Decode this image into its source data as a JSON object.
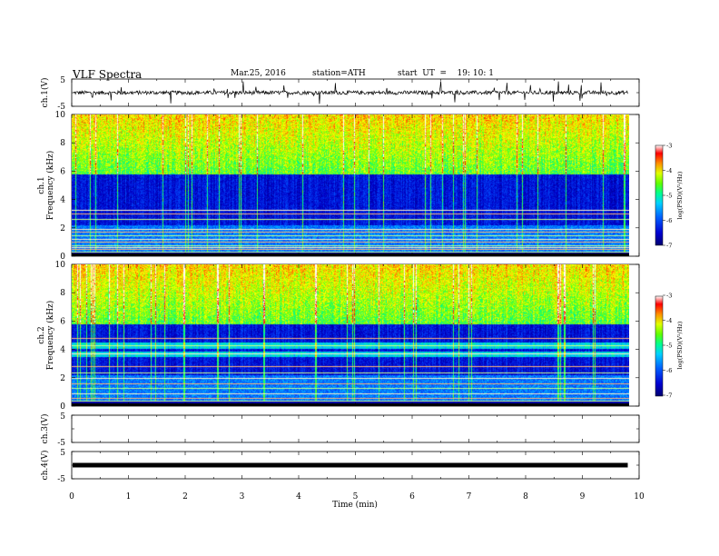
{
  "header": {
    "title": "VLF  Spectra",
    "date": "Mar.25, 2016",
    "station": "station=ATH",
    "start": "start  UT  =    19: 10: 1"
  },
  "chart_data": [
    {
      "type": "line",
      "name": "ch1-waveform",
      "ylabel": "ch.1(V)",
      "ylim": [
        -5,
        5
      ],
      "yticks": [
        "5",
        "-5"
      ],
      "xlim": [
        0,
        10
      ],
      "description_level": 0,
      "noise_amplitude": 0.7,
      "spike_amplitude": 2.5
    },
    {
      "type": "heatmap",
      "name": "ch1-spectrogram",
      "ylabel_line1": "ch.1",
      "ylabel_line2": "Frequency  (kHz)",
      "ylim": [
        0,
        10
      ],
      "yticks": [
        "0",
        "2",
        "4",
        "6",
        "8",
        "10"
      ],
      "xlim": [
        0,
        9.8
      ],
      "colorbar": {
        "label": "log(PSD)(V²/Hz)",
        "range": [
          -7,
          -3
        ],
        "ticks": [
          "-3",
          "-4",
          "-5",
          "-6",
          "-7"
        ]
      },
      "lines_khz": [
        0.2,
        0.35,
        0.5,
        0.65,
        0.8,
        1.0,
        1.2,
        1.45,
        1.7,
        1.9,
        2.6,
        3.0,
        3.3
      ]
    },
    {
      "type": "heatmap",
      "name": "ch2-spectrogram",
      "ylabel_line1": "ch.2",
      "ylabel_line2": "Frequency  (kHz)",
      "ylim": [
        0,
        10
      ],
      "yticks": [
        "0",
        "2",
        "4",
        "6",
        "8",
        "10"
      ],
      "xlim": [
        0,
        9.8
      ],
      "colorbar": {
        "label": "log(PSD)(V²/Hz)",
        "range": [
          -7,
          -3
        ],
        "ticks": [
          "-3",
          "-4",
          "-5",
          "-6",
          "-7"
        ]
      },
      "lines_khz": [
        0.2,
        0.4,
        0.6,
        0.9,
        1.3,
        1.6,
        2.0,
        2.4,
        2.8,
        3.7,
        4.3,
        4.8
      ]
    },
    {
      "type": "line",
      "name": "ch3-waveform",
      "ylabel": "ch.3(V)",
      "ylim": [
        -5,
        5
      ],
      "yticks": [
        "5",
        "-5"
      ],
      "xlim": [
        0,
        10
      ],
      "values": []
    },
    {
      "type": "line",
      "name": "ch4-waveform",
      "ylabel": "ch.4(V)",
      "ylim": [
        -5,
        5
      ],
      "yticks": [
        "5",
        "-5"
      ],
      "xlim": [
        0,
        10
      ],
      "description_level": 0,
      "trace_xlim": [
        0,
        9.8
      ]
    }
  ],
  "xaxis": {
    "label": "Time  (min)",
    "ticks": [
      "0",
      "1",
      "2",
      "3",
      "4",
      "5",
      "6",
      "7",
      "8",
      "9",
      "10"
    ],
    "range": [
      0,
      10
    ]
  },
  "colors": {
    "scale": [
      "#000070",
      "#0000c8",
      "#0050ff",
      "#00c8ff",
      "#00ff80",
      "#80ff00",
      "#ffff00",
      "#ff8000",
      "#ff0000",
      "#ffffff"
    ]
  }
}
